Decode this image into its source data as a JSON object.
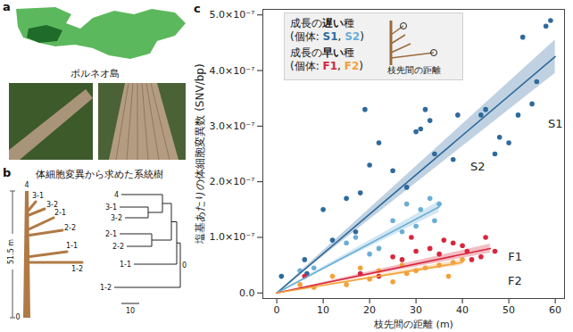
{
  "panels": {
    "a": {
      "label": "a",
      "map_label": "ボルネオ島"
    },
    "b": {
      "label": "b",
      "title": "体細胞変異から求めた系統樹",
      "tree": {
        "top_label": "4",
        "base_label": "0",
        "height_label": "51.5 m",
        "branch_labels": [
          "3-1",
          "3-2",
          "2-1",
          "2-2",
          "1-1",
          "1-2"
        ]
      },
      "dendrogram": {
        "leaves": [
          "4",
          "3-1",
          "3-2",
          "2-1",
          "2-2",
          "1-1",
          "1-2"
        ],
        "root": "0",
        "scale_bar": "10"
      }
    },
    "c": {
      "label": "c"
    }
  },
  "chart_data": {
    "type": "scatter",
    "x_label": "枝先間の距離 (m)",
    "y_label": "塩基あたりの体細胞変異数 (SNV/bp)",
    "xlim": [
      -3,
      62
    ],
    "xticks": [
      0,
      10,
      20,
      30,
      40,
      50,
      60
    ],
    "ylim": [
      -1e-08,
      5.1e-07
    ],
    "yticks": [
      {
        "value": 0,
        "label": "0.0"
      },
      {
        "value": 1e-07,
        "label": "1.0×10⁻⁷"
      },
      {
        "value": 2e-07,
        "label": "2.0×10⁻⁷"
      },
      {
        "value": 3e-07,
        "label": "3.0×10⁻⁷"
      },
      {
        "value": 4e-07,
        "label": "4.0×10⁻⁷"
      },
      {
        "value": 5e-07,
        "label": "5.0×10⁻⁷"
      }
    ],
    "grid": false,
    "legend": "top-left",
    "legend_groups": [
      {
        "label_parts": [
          "成長の",
          "遅い",
          "種"
        ],
        "members_text": "(個体: S1, S2)"
      },
      {
        "label_parts": [
          "成長の",
          "早い",
          "種"
        ],
        "members_text": "(個体: F1, F2)"
      }
    ],
    "inset_label": "枝先間の距離",
    "series": [
      {
        "name": "S1",
        "color": "#2f6a9c",
        "marker": "circle",
        "x": [
          1,
          6,
          6.5,
          10,
          12,
          15,
          17,
          18,
          19,
          20,
          22,
          25,
          28,
          30,
          31,
          32,
          33,
          34,
          38,
          39,
          44,
          45,
          47,
          48,
          50,
          52,
          53,
          55,
          56,
          58,
          59
        ],
        "values": [
          3e-08,
          6e-08,
          3.5e-08,
          1.5e-07,
          9.5e-08,
          1.7e-07,
          1.1e-07,
          1.8e-07,
          3.3e-07,
          2.3e-07,
          2.7e-07,
          2.2e-07,
          1.9e-07,
          2.9e-07,
          2.95e-07,
          3.3e-07,
          3.1e-07,
          2.5e-07,
          2.4e-07,
          3.2e-07,
          3.2e-07,
          3.3e-07,
          2.5e-07,
          2.8e-07,
          2.7e-07,
          3.2e-07,
          4.6e-07,
          3.4e-07,
          3.8e-07,
          4.8e-07,
          4.9e-07
        ],
        "fit": {
          "x": [
            0,
            60
          ],
          "values": [
            0,
            4.25e-07
          ],
          "lower": [
            0,
            3.95e-07
          ],
          "upper": [
            0,
            4.55e-07
          ]
        }
      },
      {
        "name": "S2",
        "color": "#6aaed6",
        "marker": "circle",
        "x": [
          5,
          8,
          15,
          17,
          20,
          22,
          25,
          27,
          28,
          30,
          31,
          33,
          34,
          35
        ],
        "values": [
          4e-08,
          4.5e-08,
          9e-08,
          1e-07,
          7e-08,
          8e-08,
          1.3e-07,
          1.1e-07,
          1.6e-07,
          1.2e-07,
          1.5e-07,
          1.7e-07,
          1.3e-07,
          1.6e-07
        ],
        "fit": {
          "x": [
            0,
            35
          ],
          "values": [
            0,
            1.55e-07
          ],
          "lower": [
            0,
            1.45e-07
          ],
          "upper": [
            0,
            1.65e-07
          ]
        }
      },
      {
        "name": "F1",
        "color": "#d7263d",
        "marker": "circle",
        "x": [
          6,
          18,
          22,
          25,
          27,
          29,
          30,
          33,
          35,
          36,
          38,
          40,
          41,
          42,
          44,
          45,
          47
        ],
        "values": [
          3e-08,
          3.5e-08,
          3e-08,
          6.5e-08,
          6e-08,
          1e-07,
          7.5e-08,
          8e-08,
          7e-08,
          9.5e-08,
          9e-08,
          8.5e-08,
          7.5e-08,
          6e-08,
          6.5e-08,
          1e-07,
          7.5e-08
        ],
        "fit": {
          "x": [
            0,
            46
          ],
          "values": [
            0,
            8e-08
          ],
          "lower": [
            0,
            7.2e-08
          ],
          "upper": [
            0,
            8.8e-08
          ]
        }
      },
      {
        "name": "F2",
        "color": "#f2a23a",
        "marker": "circle",
        "x": [
          5,
          8,
          12,
          15,
          18,
          20,
          22,
          25,
          27,
          28,
          30,
          32,
          35,
          37,
          38,
          40
        ],
        "values": [
          1.5e-08,
          1e-08,
          3e-08,
          1.5e-08,
          4.5e-08,
          2.5e-08,
          4e-08,
          2e-08,
          5e-08,
          3.5e-08,
          4e-08,
          4.5e-08,
          5e-08,
          3e-08,
          5.5e-08,
          6e-08
        ],
        "fit": {
          "x": [
            0,
            40
          ],
          "values": [
            0,
            5.5e-08
          ],
          "lower": [
            0,
            5e-08
          ],
          "upper": [
            0,
            6e-08
          ]
        }
      }
    ]
  }
}
